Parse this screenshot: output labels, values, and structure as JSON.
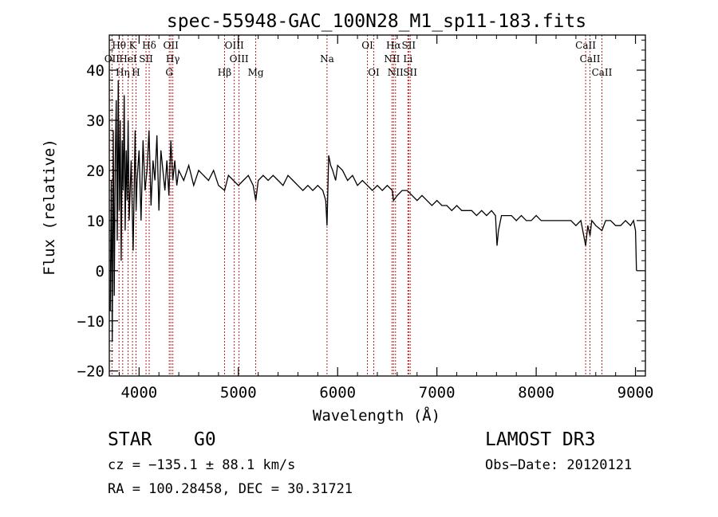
{
  "chart_data": {
    "type": "line",
    "title": "spec-55948-GAC_100N28_M1_sp11-183.fits",
    "xlabel": "Wavelength (Å)",
    "ylabel": "Flux (relative)",
    "xlim": [
      3700,
      9100
    ],
    "ylim": [
      -21,
      47
    ],
    "xticks": [
      "4000",
      "5000",
      "6000",
      "7000",
      "8000",
      "9000"
    ],
    "xtick_values": [
      4000,
      5000,
      6000,
      7000,
      8000,
      9000
    ],
    "yticks": [
      "−20",
      "−10",
      "0",
      "10",
      "20",
      "30",
      "40"
    ],
    "ytick_values": [
      -20,
      -10,
      0,
      10,
      20,
      30,
      40
    ],
    "series": [
      {
        "name": "spectrum",
        "x": [
          3710,
          3720,
          3730,
          3740,
          3750,
          3760,
          3770,
          3780,
          3790,
          3800,
          3810,
          3820,
          3830,
          3840,
          3850,
          3860,
          3870,
          3880,
          3890,
          3900,
          3920,
          3940,
          3960,
          3970,
          3980,
          4000,
          4020,
          4040,
          4060,
          4080,
          4100,
          4120,
          4140,
          4160,
          4180,
          4200,
          4220,
          4240,
          4260,
          4280,
          4300,
          4320,
          4340,
          4360,
          4380,
          4400,
          4450,
          4500,
          4550,
          4600,
          4650,
          4700,
          4750,
          4800,
          4861,
          4900,
          4950,
          5000,
          5050,
          5100,
          5150,
          5175,
          5200,
          5250,
          5300,
          5350,
          5400,
          5450,
          5500,
          5550,
          5600,
          5650,
          5700,
          5750,
          5800,
          5850,
          5880,
          5893,
          5910,
          5930,
          5950,
          5980,
          6000,
          6050,
          6100,
          6150,
          6200,
          6250,
          6300,
          6350,
          6400,
          6450,
          6500,
          6550,
          6563,
          6600,
          6650,
          6700,
          6750,
          6800,
          6850,
          6900,
          6950,
          7000,
          7050,
          7100,
          7150,
          7200,
          7250,
          7300,
          7350,
          7400,
          7450,
          7500,
          7550,
          7590,
          7605,
          7620,
          7650,
          7700,
          7750,
          7800,
          7850,
          7900,
          7950,
          8000,
          8050,
          8100,
          8150,
          8200,
          8250,
          8300,
          8350,
          8400,
          8450,
          8498,
          8520,
          8542,
          8560,
          8600,
          8662,
          8700,
          8750,
          8800,
          8850,
          8900,
          8950,
          8980,
          9000,
          9010
        ],
        "y": [
          -8,
          18,
          -14,
          28,
          -5,
          22,
          34,
          6,
          38,
          12,
          30,
          2,
          26,
          16,
          35,
          8,
          24,
          14,
          30,
          10,
          22,
          4,
          28,
          12,
          18,
          24,
          10,
          26,
          16,
          20,
          28,
          13,
          22,
          18,
          27,
          12,
          24,
          20,
          16,
          22,
          15,
          26,
          18,
          22,
          17,
          20,
          18,
          21,
          17,
          20,
          19,
          18,
          20,
          17,
          16,
          19,
          18,
          17,
          18,
          19,
          17,
          14,
          18,
          19,
          18,
          19,
          18,
          17,
          19,
          18,
          17,
          16,
          17,
          16,
          17,
          16,
          14,
          9,
          23,
          21,
          20,
          18,
          21,
          20,
          18,
          19,
          17,
          18,
          17,
          16,
          17,
          16,
          17,
          16,
          14,
          15,
          16,
          16,
          15,
          14,
          15,
          14,
          13,
          14,
          13,
          13,
          12,
          13,
          12,
          12,
          12,
          11,
          12,
          11,
          12,
          11,
          5,
          8,
          11,
          11,
          11,
          10,
          11,
          10,
          10,
          11,
          10,
          10,
          10,
          10,
          10,
          10,
          10,
          9,
          10,
          5,
          9,
          7,
          10,
          9,
          8,
          10,
          10,
          9,
          9,
          10,
          9,
          10,
          8,
          0
        ]
      }
    ],
    "lines": [
      {
        "label": "Hθ",
        "wavelength": 3798
      },
      {
        "label": "K",
        "wavelength": 3934
      },
      {
        "label": "Hδ",
        "wavelength": 4102
      },
      {
        "label": "OII",
        "wavelength": 4320
      },
      {
        "label": "OIII",
        "wavelength": 4959
      },
      {
        "label": "OI",
        "wavelength": 6300
      },
      {
        "label": "Hα",
        "wavelength": 6563
      },
      {
        "label": "SII",
        "wavelength": 6716
      },
      {
        "label": "CaII",
        "wavelength": 8498
      },
      {
        "label": "OII",
        "wavelength": 3727
      },
      {
        "label": "HeI",
        "wavelength": 3889
      },
      {
        "label": "SII",
        "wavelength": 4070
      },
      {
        "label": "Hγ",
        "wavelength": 4340
      },
      {
        "label": "OIII",
        "wavelength": 5007
      },
      {
        "label": "Na",
        "wavelength": 5893
      },
      {
        "label": "NII",
        "wavelength": 6548
      },
      {
        "label": "Li",
        "wavelength": 6708
      },
      {
        "label": "CaII",
        "wavelength": 8542
      },
      {
        "label": "Hη",
        "wavelength": 3835
      },
      {
        "label": "H",
        "wavelength": 3969
      },
      {
        "label": "G",
        "wavelength": 4304
      },
      {
        "label": "Hβ",
        "wavelength": 4861
      },
      {
        "label": "Mg",
        "wavelength": 5175
      },
      {
        "label": "OI",
        "wavelength": 6364
      },
      {
        "label": "NII",
        "wavelength": 6583
      },
      {
        "label": "SII",
        "wavelength": 6731
      },
      {
        "label": "CaII",
        "wavelength": 8662
      }
    ]
  },
  "info": {
    "object_class": "STAR",
    "subclass": "G0",
    "survey": "LAMOST DR3",
    "velocity": "cz = −135.1 ± 88.1 km/s",
    "obs_date": "Obs−Date: 20120121",
    "coords": "RA = 100.28458, DEC =  30.31721"
  },
  "colors": {
    "spectrum": "#000000",
    "line_markers": "#b22222",
    "axes": "#000000"
  }
}
